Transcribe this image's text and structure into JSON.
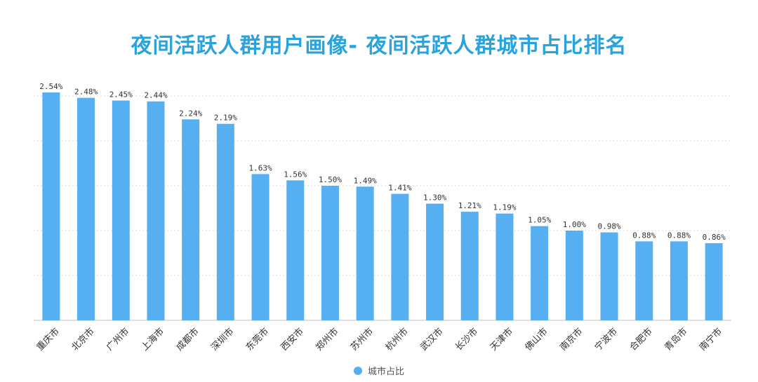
{
  "title": "夜间活跃人群用户画像- 夜间活跃人群城市占比排名",
  "colors": {
    "bar": "#56aff0",
    "title": "#2aa3dc",
    "grid": "#d9d9d9",
    "label": "#333333"
  },
  "chart_data": {
    "type": "bar",
    "categories": [
      "重庆市",
      "北京市",
      "广州市",
      "上海市",
      "成都市",
      "深圳市",
      "东莞市",
      "西安市",
      "郑州市",
      "苏州市",
      "杭州市",
      "武汉市",
      "长沙市",
      "天津市",
      "佛山市",
      "南京市",
      "宁波市",
      "合肥市",
      "青岛市",
      "南宁市"
    ],
    "series": [
      {
        "name": "城市占比",
        "values": [
          2.54,
          2.48,
          2.45,
          2.44,
          2.24,
          2.19,
          1.63,
          1.56,
          1.5,
          1.49,
          1.41,
          1.3,
          1.21,
          1.19,
          1.05,
          1.0,
          0.98,
          0.88,
          0.88,
          0.86
        ]
      }
    ],
    "data_labels": [
      "2.54%",
      "2.48%",
      "2.45%",
      "2.44%",
      "2.24%",
      "2.19%",
      "1.63%",
      "1.56%",
      "1.50%",
      "1.49%",
      "1.41%",
      "1.30%",
      "1.21%",
      "1.19%",
      "1.05%",
      "1.00%",
      "0.98%",
      "0.88%",
      "0.88%",
      "0.86%"
    ],
    "ylim": [
      0,
      2.5
    ],
    "grid": true,
    "legend_position": "bottom-center"
  },
  "legend": {
    "label": "城市占比"
  }
}
